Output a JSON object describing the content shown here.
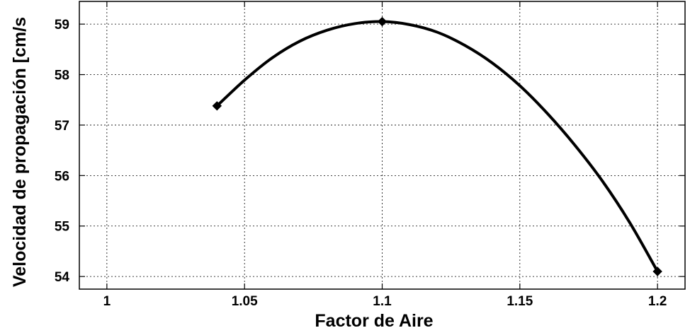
{
  "chart_data": {
    "type": "line",
    "title": "",
    "xlabel": "Factor de Aire",
    "ylabel": "Velocidad de propagación [cm/s",
    "xlim": [
      0.99,
      1.21
    ],
    "ylim": [
      53.75,
      59.45
    ],
    "xticks": [
      1,
      1.05,
      1.1,
      1.15,
      1.2
    ],
    "xtick_labels": [
      "1",
      "1.05",
      "1.1",
      "1.15",
      "1.2"
    ],
    "yticks": [
      54,
      55,
      56,
      57,
      58,
      59
    ],
    "ytick_labels": [
      "54",
      "55",
      "56",
      "57",
      "58",
      "59"
    ],
    "grid": true,
    "line_color": "#000000",
    "series": [
      {
        "x": [
          1.04,
          1.05,
          1.06,
          1.07,
          1.08,
          1.09,
          1.1,
          1.11,
          1.12,
          1.13,
          1.14,
          1.15,
          1.16,
          1.17,
          1.18,
          1.19,
          1.2
        ],
        "values": [
          57.38,
          57.89,
          58.33,
          58.66,
          58.88,
          59.01,
          59.05,
          58.99,
          58.84,
          58.58,
          58.23,
          57.78,
          57.23,
          56.6,
          55.89,
          55.06,
          54.1
        ]
      }
    ],
    "markers": [
      {
        "x": 1.04,
        "y": 57.38
      },
      {
        "x": 1.1,
        "y": 59.05
      },
      {
        "x": 1.2,
        "y": 54.1
      }
    ]
  }
}
